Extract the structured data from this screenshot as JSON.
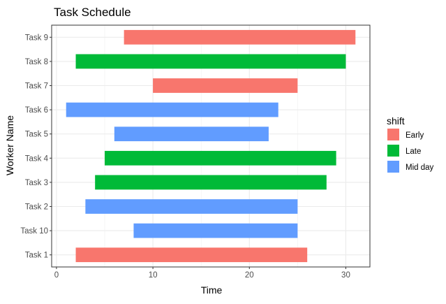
{
  "chart_data": {
    "type": "bar",
    "orientation": "horizontal-range",
    "title": "Task Schedule",
    "xlabel": "Time",
    "ylabel": "Worker Name",
    "xlim": [
      -0.5,
      32.5
    ],
    "x_ticks": [
      0,
      10,
      20,
      30
    ],
    "grid": true,
    "legend_position": "right",
    "legend_title": "shift",
    "categories": [
      "Task 1",
      "Task 10",
      "Task 2",
      "Task 3",
      "Task 4",
      "Task 5",
      "Task 6",
      "Task 7",
      "Task 8",
      "Task 9"
    ],
    "series": [
      {
        "name": "Early",
        "color": "#F8766D"
      },
      {
        "name": "Late",
        "color": "#00BA38"
      },
      {
        "name": "Mid day",
        "color": "#619CFF"
      }
    ],
    "tasks": [
      {
        "task": "Task 1",
        "start": 2,
        "end": 26,
        "shift": "Early"
      },
      {
        "task": "Task 10",
        "start": 8,
        "end": 25,
        "shift": "Mid day"
      },
      {
        "task": "Task 2",
        "start": 3,
        "end": 25,
        "shift": "Mid day"
      },
      {
        "task": "Task 3",
        "start": 4,
        "end": 28,
        "shift": "Late"
      },
      {
        "task": "Task 4",
        "start": 5,
        "end": 29,
        "shift": "Late"
      },
      {
        "task": "Task 5",
        "start": 6,
        "end": 22,
        "shift": "Mid day"
      },
      {
        "task": "Task 6",
        "start": 1,
        "end": 23,
        "shift": "Mid day"
      },
      {
        "task": "Task 7",
        "start": 10,
        "end": 25,
        "shift": "Early"
      },
      {
        "task": "Task 8",
        "start": 2,
        "end": 30,
        "shift": "Late"
      },
      {
        "task": "Task 9",
        "start": 7,
        "end": 31,
        "shift": "Early"
      }
    ]
  }
}
